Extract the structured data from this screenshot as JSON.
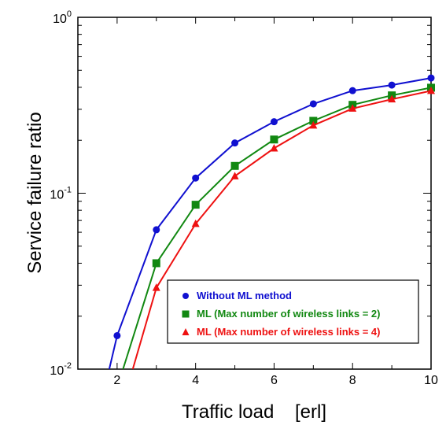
{
  "chart_data": {
    "type": "line",
    "title": "",
    "xlabel": "Traffic load    [erl]",
    "ylabel": "Service failure ratio",
    "x_scale": "linear",
    "y_scale": "log",
    "xlim": [
      1,
      10
    ],
    "ylim": [
      0.01,
      1
    ],
    "x_ticks": [
      2,
      4,
      6,
      8,
      10
    ],
    "x_tick_labels": [
      "2",
      "4",
      "6",
      "8",
      "10"
    ],
    "y_ticks": [
      0.01,
      0.1,
      1
    ],
    "y_tick_labels": [
      {
        "base": "10",
        "exp": "-2"
      },
      {
        "base": "10",
        "exp": "-1"
      },
      {
        "base": "10",
        "exp": "0"
      }
    ],
    "grid": false,
    "legend_position": "bottom-right",
    "series": [
      {
        "name": "Without ML method",
        "color": "#1010d0",
        "marker": "circle",
        "x": [
          1.8,
          2,
          3,
          4,
          5,
          6,
          7,
          8,
          9,
          10
        ],
        "y": [
          0.01,
          0.0155,
          0.062,
          0.122,
          0.193,
          0.255,
          0.322,
          0.383,
          0.412,
          0.452
        ],
        "markers_shown": [
          false,
          true,
          true,
          true,
          true,
          true,
          true,
          true,
          true,
          true
        ]
      },
      {
        "name": "ML (Max number of wireless links = 2)",
        "color": "#118811",
        "marker": "square",
        "x": [
          2.15,
          3,
          4,
          5,
          6,
          7,
          8,
          9,
          10
        ],
        "y": [
          0.01,
          0.04,
          0.086,
          0.143,
          0.202,
          0.258,
          0.318,
          0.36,
          0.398
        ],
        "markers_shown": [
          false,
          true,
          true,
          true,
          true,
          true,
          true,
          true,
          true
        ]
      },
      {
        "name": "ML (Max number of wireless links = 4)",
        "color": "#ee1111",
        "marker": "triangle",
        "x": [
          2.4,
          3,
          4,
          5,
          6,
          7,
          8,
          9,
          10
        ],
        "y": [
          0.01,
          0.029,
          0.067,
          0.125,
          0.18,
          0.243,
          0.303,
          0.342,
          0.382
        ],
        "markers_shown": [
          false,
          true,
          true,
          true,
          true,
          true,
          true,
          true,
          true
        ]
      }
    ]
  }
}
